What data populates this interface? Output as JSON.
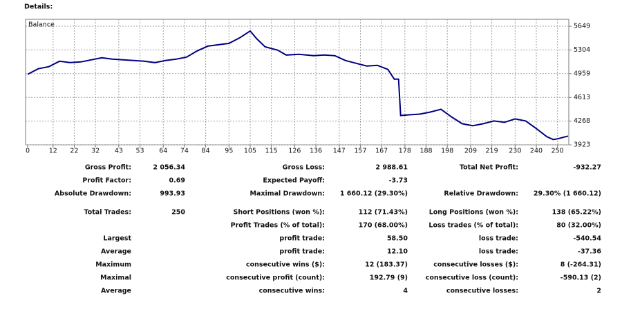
{
  "header": {
    "title": "Details:"
  },
  "chart_data": {
    "type": "line",
    "series": [
      {
        "name": "Balance",
        "color": "#000080",
        "values": [
          4950,
          5030,
          5060,
          5140,
          5120,
          5130,
          5160,
          5190,
          5170,
          5160,
          5150,
          5140,
          5120,
          5150,
          5170,
          5200,
          5290,
          5360,
          5380,
          5400,
          5480,
          5580,
          5470,
          5350,
          5300,
          5230,
          5240,
          5220,
          5230,
          5220,
          5150,
          5110,
          5070,
          5080,
          5020,
          4880,
          4880,
          4350,
          4360,
          4370,
          4400,
          4440,
          4330,
          4230,
          4200,
          4230,
          4270,
          4250,
          4300,
          4270,
          4160,
          4040,
          4000,
          4010,
          4050
        ]
      }
    ],
    "x": [
      0,
      5,
      10,
      15,
      20,
      25,
      30,
      35,
      40,
      45,
      50,
      55,
      60,
      65,
      70,
      75,
      80,
      85,
      90,
      95,
      100,
      105,
      108,
      112,
      118,
      122,
      128,
      135,
      140,
      145,
      150,
      155,
      160,
      165,
      170,
      173,
      175,
      176,
      180,
      185,
      190,
      195,
      200,
      205,
      210,
      215,
      220,
      225,
      230,
      235,
      240,
      245,
      248,
      250,
      255
    ],
    "xlim": [
      0,
      255
    ],
    "ylim": [
      3923,
      5750
    ],
    "xticks": [
      0,
      12,
      22,
      32,
      43,
      53,
      64,
      74,
      84,
      95,
      105,
      115,
      126,
      136,
      147,
      157,
      167,
      178,
      188,
      198,
      209,
      219,
      230,
      240,
      250
    ],
    "yticks": [
      3923,
      4268,
      4613,
      4959,
      5304,
      5649
    ],
    "grid": true
  },
  "table": {
    "rows": [
      [
        "Gross Profit:",
        "2 056.34",
        "Gross Loss:",
        "2 988.61",
        "Total Net Profit:",
        "-932.27"
      ],
      [
        "Profit Factor:",
        "0.69",
        "Expected Payoff:",
        "-3.73",
        null,
        null
      ],
      [
        "Absolute Drawdown:",
        "993.93",
        "Maximal Drawdown:",
        "1 660.12 (29.30%)",
        "Relative Drawdown:",
        "29.30% (1 660.12)"
      ],
      [
        "Total Trades:",
        "250",
        "Short Positions (won %):",
        "112 (71.43%)",
        "Long Positions (won %):",
        "138 (65.22%)"
      ],
      [
        null,
        null,
        "Profit Trades (% of total):",
        "170 (68.00%)",
        "Loss trades (% of total):",
        "80 (32.00%)"
      ],
      [
        "Largest",
        null,
        "profit trade:",
        "58.50",
        "loss trade:",
        "-540.54"
      ],
      [
        "Average",
        null,
        "profit trade:",
        "12.10",
        "loss trade:",
        "-37.36"
      ],
      [
        "Maximum",
        null,
        "consecutive wins ($):",
        "12 (183.37)",
        "consecutive losses ($):",
        "8 (-264.31)"
      ],
      [
        "Maximal",
        null,
        "consecutive profit (count):",
        "192.79 (9)",
        "consecutive loss (count):",
        "-590.13 (2)"
      ],
      [
        "Average",
        null,
        "consecutive wins:",
        "4",
        "consecutive losses:",
        "2"
      ]
    ]
  }
}
